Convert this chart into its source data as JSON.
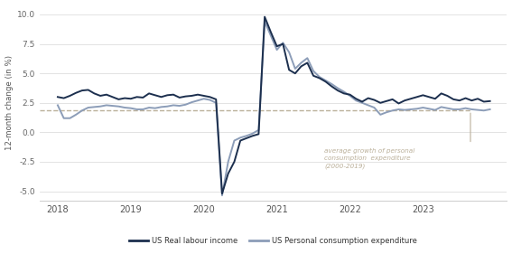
{
  "title": "",
  "ylabel": "12-month change (in %)",
  "ylim": [
    -5.8,
    10.8
  ],
  "yticks": [
    -5.0,
    -2.5,
    0.0,
    2.5,
    5.0,
    7.5,
    10.0
  ],
  "xlim": [
    2017.75,
    2024.15
  ],
  "avg_line_y": 1.85,
  "avg_label_line1": "average growth of personal",
  "avg_label_line2": "consumption  expenditure",
  "avg_label_line3": "(2000-2019)",
  "color_labour": "#1c2f4e",
  "color_pce": "#8c9db8",
  "color_avg": "#bbb09a",
  "background": "#ffffff",
  "grid_color": "#dedede",
  "labour_income": [
    [
      2018.0,
      3.0
    ],
    [
      2018.083,
      2.9
    ],
    [
      2018.167,
      3.1
    ],
    [
      2018.25,
      3.35
    ],
    [
      2018.333,
      3.55
    ],
    [
      2018.417,
      3.6
    ],
    [
      2018.5,
      3.3
    ],
    [
      2018.583,
      3.1
    ],
    [
      2018.667,
      3.2
    ],
    [
      2018.75,
      3.0
    ],
    [
      2018.833,
      2.8
    ],
    [
      2018.917,
      2.9
    ],
    [
      2019.0,
      2.85
    ],
    [
      2019.083,
      3.0
    ],
    [
      2019.167,
      2.95
    ],
    [
      2019.25,
      3.3
    ],
    [
      2019.333,
      3.15
    ],
    [
      2019.417,
      3.0
    ],
    [
      2019.5,
      3.15
    ],
    [
      2019.583,
      3.2
    ],
    [
      2019.667,
      2.95
    ],
    [
      2019.75,
      3.05
    ],
    [
      2019.833,
      3.1
    ],
    [
      2019.917,
      3.2
    ],
    [
      2020.0,
      3.1
    ],
    [
      2020.083,
      3.0
    ],
    [
      2020.167,
      2.8
    ],
    [
      2020.25,
      -5.2
    ],
    [
      2020.333,
      -3.5
    ],
    [
      2020.417,
      -2.5
    ],
    [
      2020.5,
      -0.7
    ],
    [
      2020.583,
      -0.5
    ],
    [
      2020.667,
      -0.3
    ],
    [
      2020.75,
      -0.15
    ],
    [
      2020.833,
      9.8
    ],
    [
      2020.917,
      8.5
    ],
    [
      2021.0,
      7.3
    ],
    [
      2021.083,
      7.5
    ],
    [
      2021.167,
      5.3
    ],
    [
      2021.25,
      5.0
    ],
    [
      2021.333,
      5.6
    ],
    [
      2021.417,
      5.9
    ],
    [
      2021.5,
      4.8
    ],
    [
      2021.583,
      4.6
    ],
    [
      2021.667,
      4.3
    ],
    [
      2021.75,
      3.9
    ],
    [
      2021.833,
      3.55
    ],
    [
      2021.917,
      3.3
    ],
    [
      2022.0,
      3.2
    ],
    [
      2022.083,
      2.85
    ],
    [
      2022.167,
      2.6
    ],
    [
      2022.25,
      2.9
    ],
    [
      2022.333,
      2.75
    ],
    [
      2022.417,
      2.5
    ],
    [
      2022.5,
      2.65
    ],
    [
      2022.583,
      2.8
    ],
    [
      2022.667,
      2.45
    ],
    [
      2022.75,
      2.7
    ],
    [
      2022.833,
      2.85
    ],
    [
      2022.917,
      3.0
    ],
    [
      2023.0,
      3.15
    ],
    [
      2023.083,
      3.0
    ],
    [
      2023.167,
      2.85
    ],
    [
      2023.25,
      3.3
    ],
    [
      2023.333,
      3.1
    ],
    [
      2023.417,
      2.8
    ],
    [
      2023.5,
      2.7
    ],
    [
      2023.583,
      2.9
    ],
    [
      2023.667,
      2.7
    ],
    [
      2023.75,
      2.85
    ],
    [
      2023.833,
      2.6
    ],
    [
      2023.917,
      2.65
    ]
  ],
  "pce": [
    [
      2018.0,
      2.3
    ],
    [
      2018.083,
      1.2
    ],
    [
      2018.167,
      1.2
    ],
    [
      2018.25,
      1.5
    ],
    [
      2018.333,
      1.85
    ],
    [
      2018.417,
      2.1
    ],
    [
      2018.5,
      2.15
    ],
    [
      2018.583,
      2.2
    ],
    [
      2018.667,
      2.3
    ],
    [
      2018.75,
      2.25
    ],
    [
      2018.833,
      2.2
    ],
    [
      2018.917,
      2.1
    ],
    [
      2019.0,
      2.05
    ],
    [
      2019.083,
      1.95
    ],
    [
      2019.167,
      1.95
    ],
    [
      2019.25,
      2.1
    ],
    [
      2019.333,
      2.05
    ],
    [
      2019.417,
      2.15
    ],
    [
      2019.5,
      2.2
    ],
    [
      2019.583,
      2.3
    ],
    [
      2019.667,
      2.25
    ],
    [
      2019.75,
      2.35
    ],
    [
      2019.833,
      2.55
    ],
    [
      2019.917,
      2.7
    ],
    [
      2020.0,
      2.85
    ],
    [
      2020.083,
      2.75
    ],
    [
      2020.167,
      2.5
    ],
    [
      2020.25,
      -5.35
    ],
    [
      2020.333,
      -2.5
    ],
    [
      2020.417,
      -0.7
    ],
    [
      2020.5,
      -0.45
    ],
    [
      2020.583,
      -0.3
    ],
    [
      2020.667,
      -0.1
    ],
    [
      2020.75,
      0.2
    ],
    [
      2020.833,
      9.4
    ],
    [
      2020.917,
      8.2
    ],
    [
      2021.0,
      7.0
    ],
    [
      2021.083,
      7.6
    ],
    [
      2021.167,
      6.8
    ],
    [
      2021.25,
      5.4
    ],
    [
      2021.333,
      5.9
    ],
    [
      2021.417,
      6.3
    ],
    [
      2021.5,
      5.2
    ],
    [
      2021.583,
      4.7
    ],
    [
      2021.667,
      4.4
    ],
    [
      2021.75,
      4.1
    ],
    [
      2021.833,
      3.75
    ],
    [
      2021.917,
      3.45
    ],
    [
      2022.0,
      3.1
    ],
    [
      2022.083,
      2.7
    ],
    [
      2022.167,
      2.5
    ],
    [
      2022.25,
      2.3
    ],
    [
      2022.333,
      2.1
    ],
    [
      2022.417,
      1.5
    ],
    [
      2022.5,
      1.7
    ],
    [
      2022.583,
      1.85
    ],
    [
      2022.667,
      1.95
    ],
    [
      2022.75,
      1.9
    ],
    [
      2022.833,
      1.95
    ],
    [
      2022.917,
      2.0
    ],
    [
      2023.0,
      2.1
    ],
    [
      2023.083,
      2.0
    ],
    [
      2023.167,
      1.9
    ],
    [
      2023.25,
      2.15
    ],
    [
      2023.333,
      2.05
    ],
    [
      2023.417,
      1.95
    ],
    [
      2023.5,
      1.95
    ],
    [
      2023.583,
      2.05
    ],
    [
      2023.667,
      1.95
    ],
    [
      2023.75,
      1.9
    ],
    [
      2023.833,
      1.85
    ],
    [
      2023.917,
      1.95
    ]
  ]
}
